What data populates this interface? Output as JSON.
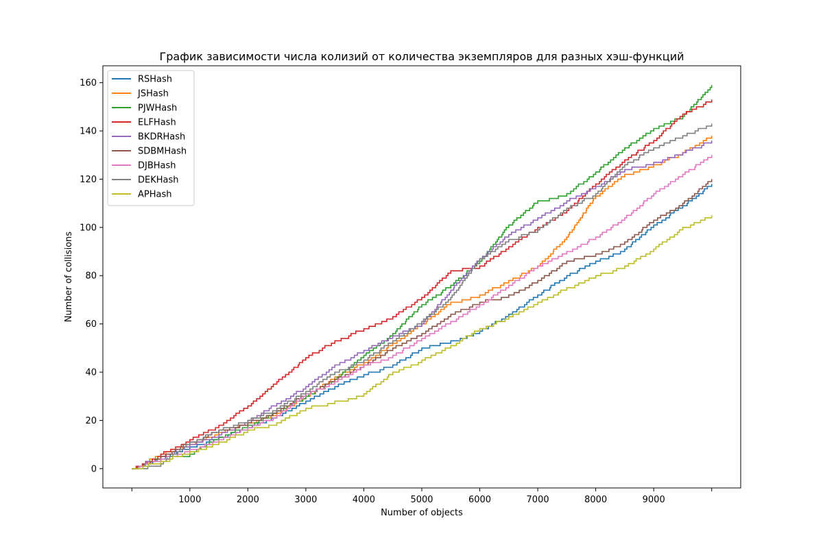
{
  "chart_data": {
    "type": "line",
    "step": true,
    "title": "График зависимости числа колизий от количества экземпляров для разных хэш-функций",
    "xlabel": "Number of objects",
    "ylabel": "Number of collisions",
    "xlim": [
      -500,
      10500
    ],
    "ylim": [
      -8,
      167
    ],
    "xticks": [
      0,
      1000,
      2000,
      3000,
      4000,
      5000,
      6000,
      7000,
      8000,
      9000,
      10000
    ],
    "xtick_labels": [
      "",
      "1000",
      "2000",
      "3000",
      "4000",
      "5000",
      "6000",
      "7000",
      "8000",
      "9000",
      ""
    ],
    "yticks": [
      0,
      20,
      40,
      60,
      80,
      100,
      120,
      140,
      160
    ],
    "ytick_labels": [
      "0",
      "20",
      "40",
      "60",
      "80",
      "100",
      "120",
      "140",
      "160"
    ],
    "legend_position": "upper-left",
    "series": [
      {
        "name": "RSHash",
        "color": "#1f77b4",
        "x": [
          0,
          500,
          1000,
          1500,
          2000,
          2500,
          3000,
          3500,
          4000,
          4500,
          5000,
          5500,
          6000,
          6500,
          7000,
          7500,
          8000,
          8500,
          9000,
          9500,
          10000
        ],
        "y": [
          0,
          4,
          9,
          13,
          17,
          22,
          28,
          34,
          39,
          43,
          50,
          53,
          57,
          64,
          72,
          80,
          86,
          91,
          101,
          109,
          118
        ]
      },
      {
        "name": "JSHash",
        "color": "#ff7f0e",
        "x": [
          0,
          500,
          1000,
          1500,
          2000,
          2500,
          3000,
          3500,
          4000,
          4500,
          5000,
          5500,
          6000,
          6500,
          7000,
          7500,
          8000,
          8500,
          9000,
          9500,
          10000
        ],
        "y": [
          0,
          6,
          10,
          15,
          19,
          23,
          30,
          38,
          44,
          52,
          60,
          69,
          72,
          78,
          84,
          96,
          113,
          122,
          126,
          131,
          138
        ]
      },
      {
        "name": "PJWHash",
        "color": "#2ca02c",
        "x": [
          0,
          500,
          1000,
          1500,
          2000,
          2500,
          3000,
          3500,
          4000,
          4500,
          5000,
          5500,
          6000,
          6500,
          7000,
          7500,
          8000,
          8500,
          9000,
          9500,
          10000
        ],
        "y": [
          0,
          5,
          6,
          13,
          18,
          24,
          30,
          37,
          47,
          56,
          68,
          76,
          86,
          101,
          111,
          114,
          123,
          133,
          141,
          146,
          159
        ]
      },
      {
        "name": "ELFHash",
        "color": "#d62728",
        "x": [
          0,
          500,
          1000,
          1500,
          2000,
          2500,
          3000,
          3500,
          4000,
          4500,
          5000,
          5500,
          6000,
          6500,
          7000,
          7500,
          8000,
          8500,
          9000,
          9500,
          10000
        ],
        "y": [
          0,
          6,
          12,
          18,
          26,
          36,
          46,
          53,
          58,
          63,
          71,
          82,
          84,
          92,
          100,
          107,
          118,
          128,
          136,
          147,
          153
        ]
      },
      {
        "name": "BKDRHash",
        "color": "#9467bd",
        "x": [
          0,
          500,
          1000,
          1500,
          2000,
          2500,
          3000,
          3500,
          4000,
          4500,
          5000,
          5500,
          6000,
          6500,
          7000,
          7500,
          8000,
          8500,
          9000,
          9500,
          10000
        ],
        "y": [
          0,
          5,
          10,
          14,
          20,
          27,
          34,
          43,
          49,
          55,
          60,
          74,
          87,
          97,
          104,
          111,
          117,
          124,
          127,
          131,
          136
        ]
      },
      {
        "name": "SDBMHash",
        "color": "#8c564b",
        "x": [
          0,
          500,
          1000,
          1500,
          2000,
          2500,
          3000,
          3500,
          4000,
          4500,
          5000,
          5500,
          6000,
          6500,
          7000,
          7500,
          8000,
          8500,
          9000,
          9500,
          10000
        ],
        "y": [
          0,
          5,
          11,
          16,
          19,
          24,
          31,
          37,
          43,
          50,
          56,
          64,
          69,
          72,
          78,
          86,
          89,
          94,
          103,
          110,
          120
        ]
      },
      {
        "name": "DJBHash",
        "color": "#e377c2",
        "x": [
          0,
          500,
          1000,
          1500,
          2000,
          2500,
          3000,
          3500,
          4000,
          4500,
          5000,
          5500,
          6000,
          6500,
          7000,
          7500,
          8000,
          8500,
          9000,
          9500,
          10000
        ],
        "y": [
          0,
          4,
          8,
          12,
          17,
          22,
          31,
          36,
          43,
          47,
          54,
          61,
          68,
          76,
          84,
          90,
          96,
          104,
          114,
          122,
          130
        ]
      },
      {
        "name": "DEKHash",
        "color": "#7f7f7f",
        "x": [
          0,
          500,
          1000,
          1500,
          2000,
          2500,
          3000,
          3500,
          4000,
          4500,
          5000,
          5500,
          6000,
          6500,
          7000,
          7500,
          8000,
          8500,
          9000,
          9500,
          10000
        ],
        "y": [
          0,
          2,
          11,
          16,
          20,
          25,
          32,
          40,
          45,
          53,
          61,
          71,
          87,
          95,
          99,
          108,
          114,
          126,
          133,
          138,
          143
        ]
      },
      {
        "name": "APHash",
        "color": "#bcbd22",
        "x": [
          0,
          500,
          1000,
          1500,
          2000,
          2500,
          3000,
          3500,
          4000,
          4500,
          5000,
          5500,
          6000,
          6500,
          7000,
          7500,
          8000,
          8500,
          9000,
          9500,
          10000
        ],
        "y": [
          0,
          3,
          7,
          11,
          16,
          19,
          25,
          28,
          31,
          40,
          45,
          51,
          58,
          63,
          69,
          75,
          80,
          84,
          91,
          100,
          105
        ]
      }
    ]
  }
}
